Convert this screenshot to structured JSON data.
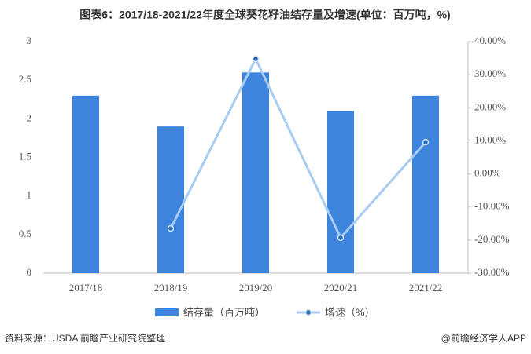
{
  "chart_data": {
    "type": "bar-line",
    "title": "图表6：2017/18-2021/22年度全球葵花籽油结存量及增速(单位：百万吨，%)",
    "categories": [
      "2017/18",
      "2018/19",
      "2019/20",
      "2020/21",
      "2021/22"
    ],
    "series": [
      {
        "name": "结存量（百万吨）",
        "type": "bar",
        "color": "#3d85dc",
        "values": [
          2.3,
          1.9,
          2.6,
          2.1,
          2.3
        ]
      },
      {
        "name": "增速（%）",
        "type": "line",
        "axis": "y2",
        "color": "#a8cbf3",
        "values": [
          null,
          -16.5,
          34.8,
          -19.3,
          9.6
        ]
      }
    ],
    "ylim": [
      0,
      3
    ],
    "yticks": [
      0,
      0.5,
      1,
      1.5,
      2,
      2.5,
      3
    ],
    "y2lim": [
      -30,
      40
    ],
    "y2ticks": [
      {
        "value": -30,
        "label": "-30.00%"
      },
      {
        "value": -20,
        "label": "-20.00%"
      },
      {
        "value": -10,
        "label": "-10.00%"
      },
      {
        "value": 0,
        "label": "0.00%"
      },
      {
        "value": 10,
        "label": "10.00%"
      },
      {
        "value": 20,
        "label": "20.00%"
      },
      {
        "value": 30,
        "label": "30.00%"
      },
      {
        "value": 40,
        "label": "40.00%"
      }
    ],
    "source": "资料来源：USDA 前瞻产业研究院整理",
    "credit": "@前瞻经济学人APP"
  }
}
